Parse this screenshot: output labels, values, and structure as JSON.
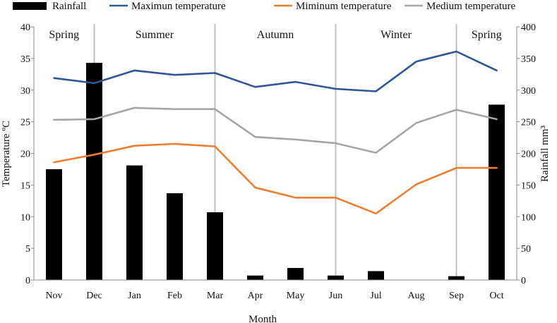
{
  "chart_data": {
    "type": "bar+line",
    "xlabel": "Month",
    "ylabel_left": "Temperature ºC",
    "ylabel_right": "Rainfall mm³",
    "ylim_left": [
      0,
      40
    ],
    "ylim_right": [
      0,
      400
    ],
    "yticks_left": [
      "0",
      "5",
      "10",
      "15",
      "20",
      "25",
      "30",
      "35",
      "40"
    ],
    "yticks_right": [
      "0",
      "50",
      "100",
      "150",
      "200",
      "250",
      "300",
      "350",
      "400"
    ],
    "categories": [
      "Nov",
      "Dec",
      "Jan",
      "Feb",
      "Mar",
      "Apr",
      "May",
      "Jun",
      "Jul",
      "Aug",
      "Sep",
      "Oct"
    ],
    "legend": {
      "position": "top",
      "entries": [
        {
          "name": "Rainfall",
          "kind": "bar",
          "color": "#000000"
        },
        {
          "name": "Maximun temperature",
          "kind": "line",
          "color": "#2F5597"
        },
        {
          "name": "Miminum temperature",
          "kind": "line",
          "color": "#ED7D31"
        },
        {
          "name": "Medium temperature",
          "kind": "line",
          "color": "#A5A5A5"
        }
      ]
    },
    "bar_series": {
      "name": "Rainfall",
      "axis": "right",
      "color": "#000000",
      "values": [
        175,
        343,
        181,
        137,
        107,
        7,
        19,
        7,
        14,
        0,
        6,
        277
      ]
    },
    "line_series": [
      {
        "name": "Maximun temperature",
        "axis": "left",
        "color": "#2F5597",
        "values": [
          31.9,
          31.1,
          33.1,
          32.4,
          32.7,
          30.5,
          31.3,
          30.2,
          29.8,
          34.5,
          36.1,
          33.1
        ]
      },
      {
        "name": "Miminum temperature",
        "axis": "left",
        "color": "#ED7D31",
        "values": [
          18.6,
          19.8,
          21.2,
          21.5,
          21.1,
          14.6,
          13.0,
          13.0,
          10.5,
          15.1,
          17.7,
          17.7
        ]
      },
      {
        "name": "Medium temperature",
        "axis": "left",
        "color": "#A5A5A5",
        "values": [
          25.3,
          25.4,
          27.2,
          27.0,
          27.0,
          22.6,
          22.2,
          21.6,
          20.1,
          24.8,
          26.9,
          25.4
        ]
      }
    ],
    "seasons": [
      {
        "label": "Spring",
        "start_index": 0,
        "end_index": 0
      },
      {
        "label": "Summer",
        "start_index": 1,
        "end_index": 4
      },
      {
        "label": "Autumn",
        "start_index": 4,
        "end_index": 7
      },
      {
        "label": "Winter",
        "start_index": 7,
        "end_index": 10
      },
      {
        "label": "Spring",
        "start_index": 10,
        "end_index": 11
      }
    ],
    "season_divider_color": "#BFBFBF"
  }
}
